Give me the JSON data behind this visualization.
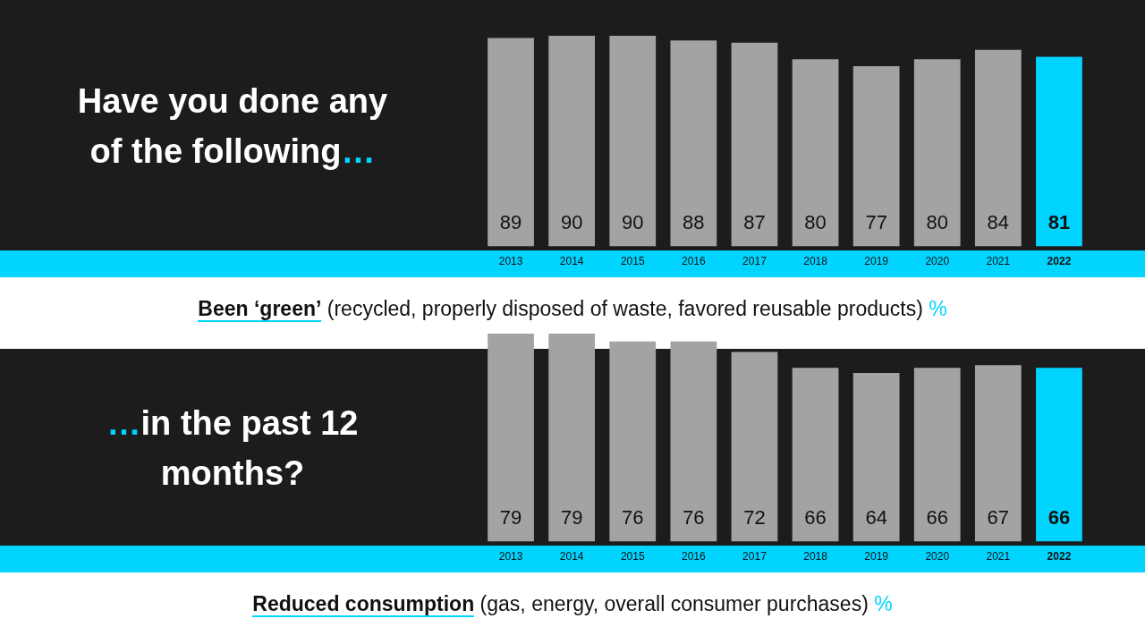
{
  "chart_data": [
    {
      "type": "bar",
      "title": "Have you done any of the following…",
      "xlabel": "Been ‘green’ (recycled, properly disposed of waste, favored reusable products) %",
      "categories": [
        "2013",
        "2014",
        "2015",
        "2016",
        "2017",
        "2018",
        "2019",
        "2020",
        "2021",
        "2022"
      ],
      "values": [
        89,
        90,
        90,
        88,
        87,
        80,
        77,
        80,
        84,
        81
      ],
      "colors": [
        "#a3a3a3",
        "#a3a3a3",
        "#a3a3a3",
        "#a3a3a3",
        "#a3a3a3",
        "#a3a3a3",
        "#a3a3a3",
        "#a3a3a3",
        "#a3a3a3",
        "#00d4ff"
      ],
      "data_labels": true,
      "tick_labels": "x"
    },
    {
      "type": "bar",
      "title": "…in the past 12 months?",
      "xlabel": "Reduced consumption (gas, energy, overall consumer purchases) %",
      "categories": [
        "2013",
        "2014",
        "2015",
        "2016",
        "2017",
        "2018",
        "2019",
        "2020",
        "2021",
        "2022"
      ],
      "values": [
        79,
        79,
        76,
        76,
        72,
        66,
        64,
        66,
        67,
        66
      ],
      "colors": [
        "#a3a3a3",
        "#a3a3a3",
        "#a3a3a3",
        "#a3a3a3",
        "#a3a3a3",
        "#a3a3a3",
        "#a3a3a3",
        "#a3a3a3",
        "#a3a3a3",
        "#00d4ff"
      ],
      "data_labels": true,
      "tick_labels": "x"
    }
  ]
}
